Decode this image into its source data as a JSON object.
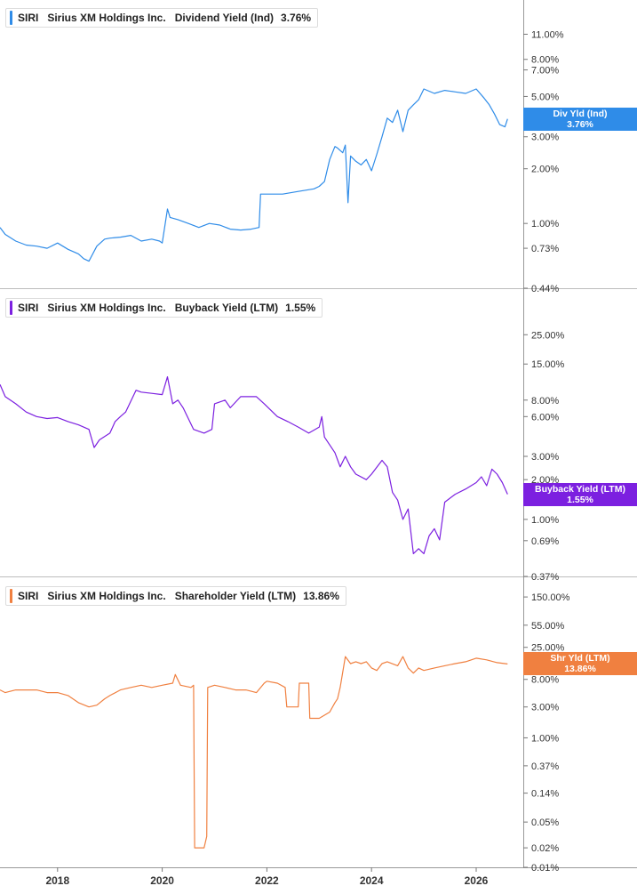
{
  "colors": {
    "panel1": "#2f8ce8",
    "panel2": "#7c20e0",
    "panel3": "#f08040",
    "grid": "#cfcfcf",
    "axis": "#999999"
  },
  "chart_data": [
    {
      "type": "line",
      "scale": "log",
      "legend": {
        "ticker": "SIRI",
        "company": "Sirius XM Holdings Inc.",
        "metric": "Dividend Yield (Ind)",
        "value": "3.76%"
      },
      "tag": {
        "label": "Div Yld (Ind)",
        "value": "3.76%"
      },
      "yticks": [
        {
          "v": 11,
          "label": "11.00%"
        },
        {
          "v": 8,
          "label": "8.00%"
        },
        {
          "v": 7,
          "label": "7.00%"
        },
        {
          "v": 5,
          "label": "5.00%"
        },
        {
          "v": 3,
          "label": "3.00%"
        },
        {
          "v": 2,
          "label": "2.00%"
        },
        {
          "v": 1,
          "label": "1.00%"
        },
        {
          "v": 0.73,
          "label": "0.73%"
        },
        {
          "v": 0.44,
          "label": "0.44%"
        }
      ],
      "ylim": [
        0.44,
        14.5
      ],
      "series": [
        {
          "x": [
            2016.9,
            2017.0,
            2017.2,
            2017.4,
            2017.6,
            2017.8,
            2018.0,
            2018.2,
            2018.4,
            2018.5,
            2018.6,
            2018.75,
            2018.9,
            2019.0,
            2019.2,
            2019.4,
            2019.6,
            2019.8,
            2019.95,
            2020.0,
            2020.1,
            2020.15,
            2020.3,
            2020.5,
            2020.7,
            2020.9,
            2021.1,
            2021.3,
            2021.5,
            2021.7,
            2021.85,
            2021.88,
            2022.0,
            2022.3,
            2022.6,
            2022.9,
            2023.0,
            2023.1,
            2023.2,
            2023.3,
            2023.35,
            2023.45,
            2023.5,
            2023.55,
            2023.6,
            2023.7,
            2023.8,
            2023.9,
            2024.0,
            2024.1,
            2024.2,
            2024.3,
            2024.4,
            2024.5,
            2024.6,
            2024.7,
            2024.8,
            2024.9,
            2025.0,
            2025.2,
            2025.4,
            2025.6,
            2025.8,
            2026.0,
            2026.15,
            2026.25,
            2026.35,
            2026.45,
            2026.55,
            2026.6
          ],
          "y": [
            0.95,
            0.87,
            0.8,
            0.76,
            0.75,
            0.73,
            0.78,
            0.72,
            0.68,
            0.64,
            0.62,
            0.75,
            0.82,
            0.83,
            0.84,
            0.86,
            0.8,
            0.82,
            0.8,
            0.78,
            1.2,
            1.08,
            1.05,
            1.0,
            0.95,
            1.0,
            0.98,
            0.93,
            0.92,
            0.93,
            0.95,
            1.45,
            1.45,
            1.45,
            1.5,
            1.55,
            1.6,
            1.7,
            2.25,
            2.65,
            2.6,
            2.45,
            2.7,
            1.3,
            2.35,
            2.2,
            2.1,
            2.25,
            1.95,
            2.4,
            3.0,
            3.8,
            3.6,
            4.2,
            3.2,
            4.2,
            4.5,
            4.8,
            5.5,
            5.2,
            5.4,
            5.3,
            5.2,
            5.5,
            4.9,
            4.5,
            4.0,
            3.5,
            3.4,
            3.76
          ]
        }
      ]
    },
    {
      "type": "line",
      "scale": "log",
      "legend": {
        "ticker": "SIRI",
        "company": "Sirius XM Holdings Inc.",
        "metric": "Buyback Yield (LTM)",
        "value": "1.55%"
      },
      "tag": {
        "label": "Buyback Yield (LTM)",
        "value": "1.55%"
      },
      "yticks": [
        {
          "v": 25,
          "label": "25.00%"
        },
        {
          "v": 15,
          "label": "15.00%"
        },
        {
          "v": 8,
          "label": "8.00%"
        },
        {
          "v": 6,
          "label": "6.00%"
        },
        {
          "v": 3,
          "label": "3.00%"
        },
        {
          "v": 2,
          "label": "2.00%"
        },
        {
          "v": 1,
          "label": "1.00%"
        },
        {
          "v": 0.69,
          "label": "0.69%"
        },
        {
          "v": 0.37,
          "label": "0.37%"
        }
      ],
      "ylim": [
        0.37,
        37
      ],
      "series": [
        {
          "x": [
            2016.9,
            2017.0,
            2017.2,
            2017.4,
            2017.6,
            2017.8,
            2018.0,
            2018.2,
            2018.4,
            2018.6,
            2018.7,
            2018.8,
            2019.0,
            2019.1,
            2019.2,
            2019.3,
            2019.5,
            2019.6,
            2019.8,
            2020.0,
            2020.1,
            2020.2,
            2020.3,
            2020.4,
            2020.6,
            2020.8,
            2020.95,
            2021.0,
            2021.2,
            2021.3,
            2021.5,
            2021.8,
            2021.95,
            2022.2,
            2022.4,
            2022.6,
            2022.8,
            2023.0,
            2023.05,
            2023.1,
            2023.3,
            2023.4,
            2023.5,
            2023.6,
            2023.7,
            2023.9,
            2024.0,
            2024.2,
            2024.3,
            2024.4,
            2024.5,
            2024.6,
            2024.7,
            2024.8,
            2024.9,
            2025.0,
            2025.1,
            2025.2,
            2025.3,
            2025.4,
            2025.6,
            2025.8,
            2026.0,
            2026.1,
            2026.2,
            2026.3,
            2026.4,
            2026.5,
            2026.6
          ],
          "y": [
            10.5,
            8.5,
            7.5,
            6.5,
            6.0,
            5.8,
            5.9,
            5.5,
            5.2,
            4.8,
            3.5,
            4.0,
            4.5,
            5.5,
            6.0,
            6.5,
            9.5,
            9.2,
            9.0,
            8.8,
            12.0,
            7.5,
            8.0,
            7.0,
            4.8,
            4.5,
            4.8,
            7.5,
            8.0,
            7.0,
            8.5,
            8.5,
            7.5,
            6.0,
            5.5,
            5.0,
            4.5,
            5.0,
            6.0,
            4.2,
            3.2,
            2.5,
            3.0,
            2.5,
            2.2,
            2.0,
            2.2,
            2.8,
            2.5,
            1.6,
            1.4,
            1.0,
            1.2,
            0.55,
            0.6,
            0.55,
            0.75,
            0.85,
            0.7,
            1.35,
            1.55,
            1.7,
            1.9,
            2.1,
            1.8,
            2.4,
            2.2,
            1.9,
            1.55
          ]
        }
      ]
    },
    {
      "type": "line",
      "scale": "log",
      "legend": {
        "ticker": "SIRI",
        "company": "Sirius XM Holdings Inc.",
        "metric": "Shareholder Yield (LTM)",
        "value": "13.86%"
      },
      "tag": {
        "label": "Shr Yld (LTM)",
        "value": "13.86%"
      },
      "yticks": [
        {
          "v": 150,
          "label": "150.00%"
        },
        {
          "v": 55,
          "label": "55.00%"
        },
        {
          "v": 25,
          "label": "25.00%"
        },
        {
          "v": 8,
          "label": "8.00%"
        },
        {
          "v": 3,
          "label": "3.00%"
        },
        {
          "v": 1,
          "label": "1.00%"
        },
        {
          "v": 0.37,
          "label": "0.37%"
        },
        {
          "v": 0.14,
          "label": "0.14%"
        },
        {
          "v": 0.05,
          "label": "0.05%"
        },
        {
          "v": 0.02,
          "label": "0.02%"
        },
        {
          "v": 0.01,
          "label": "0.01%"
        }
      ],
      "ylim": [
        0.01,
        200
      ],
      "series": [
        {
          "x": [
            2016.9,
            2017.0,
            2017.2,
            2017.4,
            2017.6,
            2017.8,
            2018.0,
            2018.2,
            2018.4,
            2018.6,
            2018.75,
            2018.9,
            2019.0,
            2019.2,
            2019.4,
            2019.6,
            2019.8,
            2020.0,
            2020.2,
            2020.25,
            2020.35,
            2020.55,
            2020.6,
            2020.62,
            2020.8,
            2020.85,
            2020.87,
            2021.0,
            2021.2,
            2021.4,
            2021.6,
            2021.8,
            2021.95,
            2022.0,
            2022.2,
            2022.35,
            2022.38,
            2022.6,
            2022.62,
            2022.8,
            2022.82,
            2023.0,
            2023.2,
            2023.3,
            2023.35,
            2023.4,
            2023.5,
            2023.6,
            2023.7,
            2023.8,
            2023.9,
            2024.0,
            2024.1,
            2024.2,
            2024.3,
            2024.5,
            2024.6,
            2024.7,
            2024.8,
            2024.9,
            2025.0,
            2025.2,
            2025.4,
            2025.6,
            2025.8,
            2026.0,
            2026.2,
            2026.4,
            2026.6
          ],
          "y": [
            5.5,
            5.0,
            5.5,
            5.5,
            5.5,
            5.0,
            5.0,
            4.5,
            3.5,
            3.0,
            3.2,
            4.0,
            4.5,
            5.5,
            6.0,
            6.5,
            6.0,
            6.5,
            7.0,
            9.5,
            6.5,
            6.0,
            6.5,
            0.02,
            0.02,
            0.03,
            6.0,
            6.5,
            6.0,
            5.5,
            5.5,
            5.0,
            7.0,
            7.5,
            7.0,
            6.0,
            3.0,
            3.0,
            7.0,
            7.0,
            2.0,
            2.0,
            2.5,
            3.5,
            4.0,
            6.0,
            18.0,
            14.0,
            15.0,
            14.0,
            15.0,
            12.0,
            11.0,
            14.0,
            15.0,
            13.0,
            18.0,
            12.0,
            10.0,
            12.0,
            11.0,
            12.0,
            13.0,
            14.0,
            15.0,
            17.0,
            16.0,
            14.5,
            13.86
          ]
        }
      ]
    }
  ],
  "xaxis": {
    "range": [
      2016.9,
      2026.9
    ],
    "ticks": [
      {
        "v": 2018,
        "label": "2018"
      },
      {
        "v": 2020,
        "label": "2020"
      },
      {
        "v": 2022,
        "label": "2022"
      },
      {
        "v": 2024,
        "label": "2024"
      },
      {
        "v": 2026,
        "label": "2026"
      }
    ]
  }
}
